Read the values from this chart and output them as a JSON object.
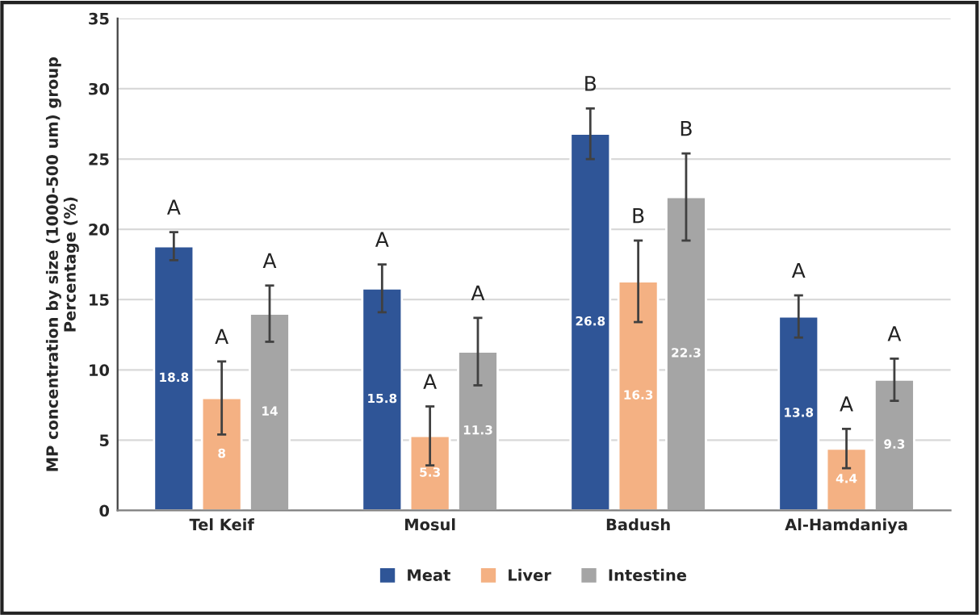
{
  "chart_data": {
    "type": "bar",
    "ylabel": "MP concentration by size (1000-500 um) group\nPercentage (%)",
    "categories": [
      "Tel Keif",
      "Mosul",
      "Badush",
      "Al-Hamdaniya"
    ],
    "series": [
      {
        "name": "Meat",
        "color": "#2f5597",
        "values": [
          18.8,
          15.8,
          26.8,
          13.8
        ],
        "errors": [
          1.0,
          1.7,
          1.8,
          1.5
        ]
      },
      {
        "name": "Liver",
        "color": "#f4b183",
        "values": [
          8,
          5.3,
          16.3,
          4.4
        ],
        "errors": [
          2.6,
          2.1,
          2.9,
          1.4
        ]
      },
      {
        "name": "Intestine",
        "color": "#a5a5a5",
        "values": [
          14,
          11.3,
          22.3,
          9.3
        ],
        "errors": [
          2.0,
          2.4,
          3.1,
          1.5
        ]
      }
    ],
    "data_labels": true,
    "annotations": [
      "A",
      "A",
      "A",
      "A",
      "A",
      "A",
      "B",
      "B",
      "B",
      "A",
      "A",
      "A"
    ],
    "ylim": [
      0,
      35
    ],
    "yticks": [
      0,
      5,
      10,
      15,
      20,
      25,
      30,
      35
    ],
    "grid": "y",
    "legend": "bottom"
  }
}
